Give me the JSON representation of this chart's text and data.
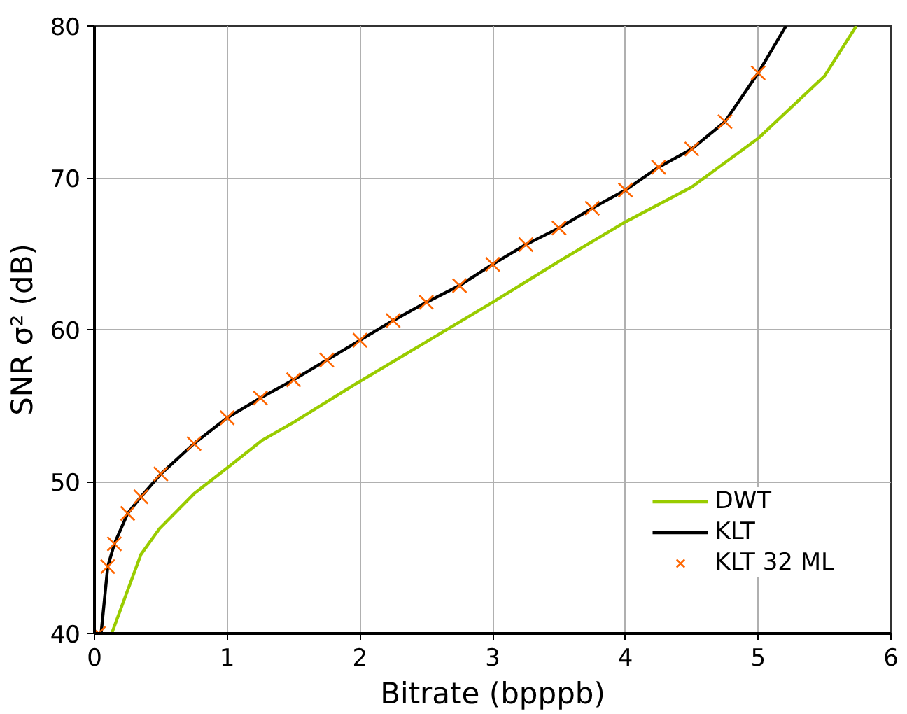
{
  "chart_data": {
    "type": "line",
    "xlabel": "Bitrate (bpppb)",
    "ylabel": "SNR σ² (dB)",
    "xlim": [
      0,
      6
    ],
    "xticks": [
      0,
      1,
      2,
      3,
      4,
      5,
      6
    ],
    "ylim": [
      40,
      80
    ],
    "yticks": [
      40,
      50,
      60,
      70,
      80
    ],
    "grid": true,
    "legend": "bottom right",
    "series": [
      {
        "name": "DWT",
        "color": "#99cc00",
        "marker": "none",
        "x": [
          0.13,
          0.24,
          0.35,
          0.49,
          0.75,
          1.0,
          1.26,
          1.5,
          2.0,
          2.5,
          3.0,
          3.5,
          4.0,
          4.5,
          5.0,
          5.5,
          5.74
        ],
        "values": [
          40,
          42.6,
          45.2,
          46.9,
          49.2,
          50.9,
          52.7,
          53.9,
          56.6,
          59.2,
          61.8,
          64.5,
          67.1,
          69.4,
          72.6,
          76.7,
          80
        ]
      },
      {
        "name": "KLT",
        "color": "#000000",
        "marker": "none",
        "x": [
          0.05,
          0.1,
          0.15,
          0.25,
          0.35,
          0.5,
          0.75,
          1,
          1.25,
          1.5,
          1.75,
          2,
          2.25,
          2.5,
          2.75,
          3,
          3.25,
          3.5,
          3.75,
          4,
          4.25,
          4.5,
          4.75,
          5,
          5.21
        ],
        "values": [
          40,
          44.4,
          45.9,
          47.9,
          49.0,
          50.5,
          52.5,
          54.2,
          55.5,
          56.7,
          58.0,
          59.3,
          60.6,
          61.8,
          62.9,
          64.3,
          65.6,
          66.7,
          68.0,
          69.2,
          70.7,
          71.9,
          73.7,
          76.9,
          80
        ]
      },
      {
        "name": "KLT 32 ML",
        "color": "#ff6600",
        "type": "scatter",
        "marker": "cross",
        "x": [
          0.03,
          0.1,
          0.15,
          0.25,
          0.35,
          0.5,
          0.75,
          1,
          1.25,
          1.5,
          1.75,
          2,
          2.25,
          2.5,
          2.75,
          3,
          3.25,
          3.5,
          3.75,
          4,
          4.25,
          4.5,
          4.75,
          5
        ],
        "values": [
          40,
          44.4,
          45.9,
          47.9,
          49.0,
          50.5,
          52.5,
          54.2,
          55.5,
          56.7,
          58.0,
          59.3,
          60.6,
          61.8,
          62.9,
          64.3,
          65.6,
          66.7,
          68.0,
          69.2,
          70.7,
          71.9,
          73.7,
          76.9
        ]
      }
    ]
  }
}
